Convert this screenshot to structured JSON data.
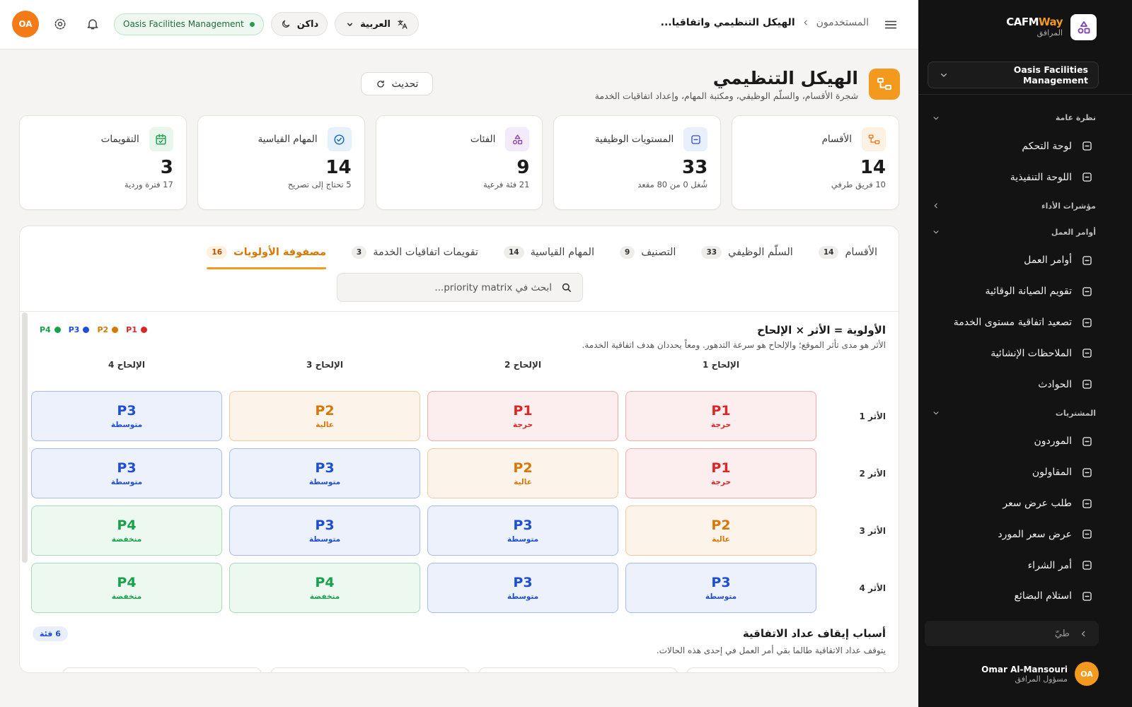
{
  "sidebar": {
    "brand_a": "CAFM",
    "brand_b": "Way",
    "brand_sub": "المرافق",
    "org": "Oasis Facilities Management",
    "sections": [
      {
        "title": "نظرة عامة",
        "collapsed": false,
        "items": [
          "لوحة التحكم",
          "اللوحة التنفيذية"
        ]
      },
      {
        "title": "مؤشرات الأداء",
        "collapsed": true,
        "items": []
      },
      {
        "title": "أوامر العمل",
        "collapsed": false,
        "items": [
          "أوامر العمل",
          "تقويم الصيانة الوقائية",
          "تصعيد اتفاقية مستوى الخدمة",
          "الملاحظات الإنشائية",
          "الحوادث"
        ]
      },
      {
        "title": "المشتريات",
        "collapsed": false,
        "items": [
          "الموردون",
          "المقاولون",
          "طلب عرض سعر",
          "عرض سعر المورد",
          "أمر الشراء",
          "استلام البضائع"
        ]
      }
    ],
    "collapse": "طيّ",
    "user": {
      "name": "Omar Al-Mansouri",
      "role": "مسؤول المرافق",
      "initials": "OA"
    }
  },
  "topbar": {
    "breadcrumb": [
      "المستخدمون",
      "الهيكل التنظيمي واتفاقيا..."
    ],
    "language": "العربية",
    "theme": "داكن",
    "org": "Oasis Facilities Management",
    "initials": "OA"
  },
  "header": {
    "title": "الهيكل التنظيمي",
    "subtitle": "شجرة الأقسام، والسلّم الوظيفي، ومكتبة المهام، وإعداد اتفاقيات الخدمة",
    "refresh": "تحديث"
  },
  "stats": [
    {
      "label": "الأقسام",
      "value": 14,
      "note": "10 فريق طرفي"
    },
    {
      "label": "المستويات الوظيفية",
      "value": 33,
      "note": "شُغل 0 من 80 مقعد"
    },
    {
      "label": "الفئات",
      "value": 9,
      "note": "21 فئة فرعية"
    },
    {
      "label": "المهام القياسية",
      "value": 14,
      "note": "5 تحتاج إلى تصريح"
    },
    {
      "label": "التقويمات",
      "value": 3,
      "note": "17 فترة وردية"
    }
  ],
  "tabs": [
    {
      "label": "الأقسام",
      "count": 14
    },
    {
      "label": "السلّم الوظيفي",
      "count": 33
    },
    {
      "label": "التصنيف",
      "count": 9
    },
    {
      "label": "المهام القياسية",
      "count": 14
    },
    {
      "label": "تقويمات اتفاقيات الخدمة",
      "count": 3
    },
    {
      "label": "مصفوفة الأولويات",
      "count": 16
    }
  ],
  "active_tab": 5,
  "search_placeholder": "ابحث في priority matrix...",
  "matrix": {
    "title": "الأولوية = الأثر × الإلحاح",
    "description": "الأثر هو مدى تأثر الموقع؛ والإلحاح هو سرعة التدهور. ومعاً يحددان هدف اتفاقية الخدمة.",
    "levels": [
      {
        "code": "P1",
        "color": "#dc2626"
      },
      {
        "code": "P2",
        "color": "#d97706"
      },
      {
        "code": "P3",
        "color": "#1d4ed8"
      },
      {
        "code": "P4",
        "color": "#16a34a"
      }
    ],
    "columns": [
      "الإلحاح 1",
      "الإلحاح 2",
      "الإلحاح 3",
      "الإلحاح 4"
    ],
    "rows": [
      {
        "label": "الأثر 1",
        "cells": [
          {
            "code": "P1",
            "label": "حرجة"
          },
          {
            "code": "P1",
            "label": "حرجة"
          },
          {
            "code": "P2",
            "label": "عالية"
          },
          {
            "code": "P3",
            "label": "متوسطة"
          }
        ]
      },
      {
        "label": "الأثر 2",
        "cells": [
          {
            "code": "P1",
            "label": "حرجة"
          },
          {
            "code": "P2",
            "label": "عالية"
          },
          {
            "code": "P3",
            "label": "متوسطة"
          },
          {
            "code": "P3",
            "label": "متوسطة"
          }
        ]
      },
      {
        "label": "الأثر 3",
        "cells": [
          {
            "code": "P2",
            "label": "عالية"
          },
          {
            "code": "P3",
            "label": "متوسطة"
          },
          {
            "code": "P3",
            "label": "متوسطة"
          },
          {
            "code": "P4",
            "label": "منخفضة"
          }
        ]
      },
      {
        "label": "الأثر 4",
        "cells": [
          {
            "code": "P3",
            "label": "متوسطة"
          },
          {
            "code": "P3",
            "label": "متوسطة"
          },
          {
            "code": "P4",
            "label": "منخفضة"
          },
          {
            "code": "P4",
            "label": "منخفضة"
          }
        ]
      }
    ]
  },
  "pause_reasons": {
    "title": "أسباب إيقاف عداد الاتفاقية",
    "description": "يتوقف عداد الاتفاقية طالما بقي أمر العمل في إحدى هذه الحالات.",
    "badge": "6 فئة"
  }
}
